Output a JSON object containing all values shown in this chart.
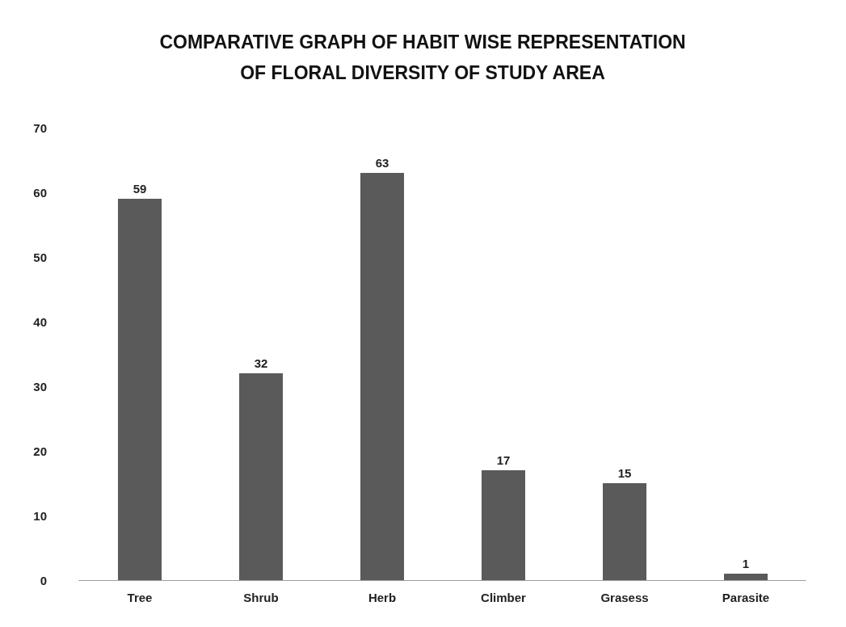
{
  "chart_data": {
    "type": "bar",
    "title": "COMPARATIVE GRAPH OF HABIT WISE REPRESENTATION\nOF FLORAL DIVERSITY OF STUDY AREA",
    "categories": [
      "Tree",
      "Shrub",
      "Herb",
      "Climber",
      "Grasess",
      "Parasite"
    ],
    "values": [
      59,
      32,
      63,
      17,
      15,
      1
    ],
    "color": "#5a5a5a",
    "ylim": [
      0,
      70
    ],
    "yticks": [
      0,
      10,
      20,
      30,
      40,
      50,
      60,
      70
    ],
    "grid": false,
    "data_labels": true
  }
}
